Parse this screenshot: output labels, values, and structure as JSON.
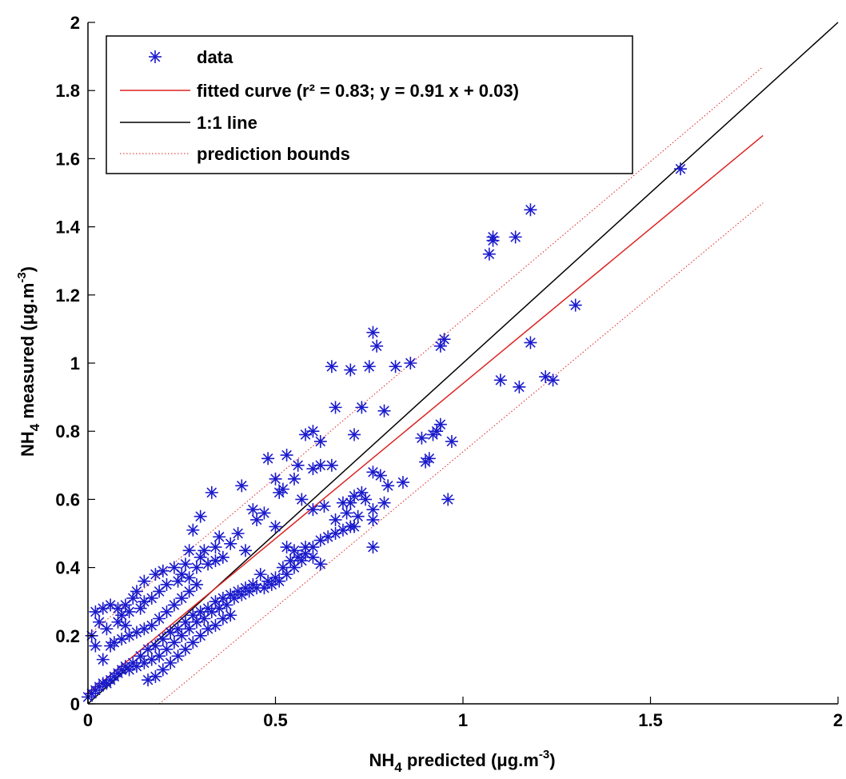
{
  "chart_data": {
    "type": "scatter",
    "xlabel": "NH",
    "xlabel_sub": "4",
    "xlabel_rest": " predicted (μg.m",
    "xlabel_sup": "-3",
    "xlabel_end": ")",
    "ylabel": "NH",
    "ylabel_sub": "4",
    "ylabel_rest": " measured (μg.m",
    "ylabel_sup": "-3",
    "ylabel_end": ")",
    "xlim": [
      0,
      2
    ],
    "ylim": [
      0,
      2
    ],
    "xticks": [
      0,
      0.5,
      1,
      1.5,
      2
    ],
    "xtick_labels": [
      "0",
      "0.5",
      "1",
      "1.5",
      "2"
    ],
    "yticks": [
      0,
      0.2,
      0.4,
      0.6,
      0.8,
      1,
      1.2,
      1.4,
      1.6,
      1.8,
      2
    ],
    "ytick_labels": [
      "0",
      "0.2",
      "0.4",
      "0.6",
      "0.8",
      "1",
      "1.2",
      "1.4",
      "1.6",
      "1.8",
      "2"
    ],
    "grid": false,
    "legend_position": "top-left",
    "legend": [
      {
        "label": "data",
        "marker": "star",
        "color": "#1a1acc"
      },
      {
        "label": "fitted curve (r² = 0.83; y = 0.91 x + 0.03)",
        "marker": "line",
        "color": "#dd2222"
      },
      {
        "label": "1:1 line",
        "marker": "line",
        "color": "#000000"
      },
      {
        "label": "prediction bounds",
        "marker": "dotted",
        "color": "#dd2222"
      }
    ],
    "fit": {
      "slope": 0.91,
      "intercept": 0.03,
      "x_range": [
        0,
        1.8
      ],
      "color": "#dd2222"
    },
    "identity_line": {
      "x_range": [
        0,
        2
      ],
      "color": "#000000"
    },
    "prediction_bounds": {
      "upper": [
        [
          0,
          0.2
        ],
        [
          1.8,
          1.87
        ]
      ],
      "lower": [
        [
          0.19,
          0
        ],
        [
          1.8,
          1.47
        ]
      ],
      "color": "#dd2222"
    },
    "series": [
      {
        "marker_color": "#1a1acc",
        "points": [
          [
            1.58,
            1.57
          ],
          [
            1.18,
            1.45
          ],
          [
            1.08,
            1.37
          ],
          [
            1.08,
            1.36
          ],
          [
            1.14,
            1.37
          ],
          [
            1.07,
            1.32
          ],
          [
            1.3,
            1.17
          ],
          [
            1.18,
            1.06
          ],
          [
            1.1,
            0.95
          ],
          [
            1.15,
            0.93
          ],
          [
            1.22,
            0.96
          ],
          [
            1.24,
            0.95
          ],
          [
            0.76,
            1.09
          ],
          [
            0.77,
            1.05
          ],
          [
            0.75,
            0.99
          ],
          [
            0.7,
            0.98
          ],
          [
            0.65,
            0.99
          ],
          [
            0.82,
            0.99
          ],
          [
            0.86,
            1.0
          ],
          [
            0.94,
            1.05
          ],
          [
            0.95,
            1.07
          ],
          [
            0.73,
            0.87
          ],
          [
            0.66,
            0.87
          ],
          [
            0.79,
            0.86
          ],
          [
            0.94,
            0.82
          ],
          [
            0.93,
            0.8
          ],
          [
            0.89,
            0.78
          ],
          [
            0.92,
            0.79
          ],
          [
            0.97,
            0.77
          ],
          [
            0.91,
            0.72
          ],
          [
            0.9,
            0.71
          ],
          [
            0.71,
            0.79
          ],
          [
            0.6,
            0.8
          ],
          [
            0.58,
            0.79
          ],
          [
            0.62,
            0.77
          ],
          [
            0.48,
            0.72
          ],
          [
            0.53,
            0.73
          ],
          [
            0.56,
            0.7
          ],
          [
            0.6,
            0.69
          ],
          [
            0.62,
            0.7
          ],
          [
            0.65,
            0.7
          ],
          [
            0.55,
            0.66
          ],
          [
            0.5,
            0.66
          ],
          [
            0.41,
            0.64
          ],
          [
            0.33,
            0.62
          ],
          [
            0.52,
            0.63
          ],
          [
            0.51,
            0.62
          ],
          [
            0.57,
            0.6
          ],
          [
            0.96,
            0.6
          ],
          [
            0.76,
            0.68
          ],
          [
            0.78,
            0.67
          ],
          [
            0.74,
            0.6
          ],
          [
            0.73,
            0.62
          ],
          [
            0.71,
            0.61
          ],
          [
            0.7,
            0.59
          ],
          [
            0.68,
            0.59
          ],
          [
            0.63,
            0.58
          ],
          [
            0.6,
            0.57
          ],
          [
            0.79,
            0.59
          ],
          [
            0.84,
            0.65
          ],
          [
            0.8,
            0.64
          ],
          [
            0.76,
            0.57
          ],
          [
            0.72,
            0.55
          ],
          [
            0.76,
            0.54
          ],
          [
            0.71,
            0.52
          ],
          [
            0.76,
            0.46
          ],
          [
            0.3,
            0.55
          ],
          [
            0.28,
            0.51
          ],
          [
            0.44,
            0.57
          ],
          [
            0.47,
            0.56
          ],
          [
            0.45,
            0.54
          ],
          [
            0.5,
            0.52
          ],
          [
            0.4,
            0.5
          ],
          [
            0.35,
            0.49
          ],
          [
            0.38,
            0.47
          ],
          [
            0.42,
            0.45
          ],
          [
            0.34,
            0.46
          ],
          [
            0.31,
            0.45
          ],
          [
            0.27,
            0.45
          ],
          [
            0.3,
            0.43
          ],
          [
            0.26,
            0.41
          ],
          [
            0.23,
            0.4
          ],
          [
            0.25,
            0.38
          ],
          [
            0.2,
            0.39
          ],
          [
            0.18,
            0.38
          ],
          [
            0.15,
            0.36
          ],
          [
            0.13,
            0.33
          ],
          [
            0.15,
            0.3
          ],
          [
            0.12,
            0.31
          ],
          [
            0.1,
            0.29
          ],
          [
            0.08,
            0.28
          ],
          [
            0.06,
            0.29
          ],
          [
            0.04,
            0.28
          ],
          [
            0.02,
            0.27
          ],
          [
            0.03,
            0.24
          ],
          [
            0.01,
            0.2
          ],
          [
            0.02,
            0.17
          ],
          [
            0.05,
            0.22
          ],
          [
            0.08,
            0.24
          ],
          [
            0.1,
            0.23
          ],
          [
            0.06,
            0.17
          ],
          [
            0.04,
            0.13
          ],
          [
            0.62,
            0.41
          ],
          [
            0.6,
            0.43
          ],
          [
            0.58,
            0.44
          ],
          [
            0.55,
            0.45
          ],
          [
            0.53,
            0.46
          ],
          [
            0.57,
            0.42
          ],
          [
            0.55,
            0.4
          ],
          [
            0.53,
            0.38
          ],
          [
            0.5,
            0.37
          ],
          [
            0.48,
            0.36
          ],
          [
            0.46,
            0.38
          ],
          [
            0.44,
            0.35
          ],
          [
            0.42,
            0.34
          ],
          [
            0.4,
            0.33
          ],
          [
            0.38,
            0.32
          ],
          [
            0.36,
            0.31
          ],
          [
            0.34,
            0.3
          ],
          [
            0.32,
            0.28
          ],
          [
            0.3,
            0.27
          ],
          [
            0.28,
            0.26
          ],
          [
            0.26,
            0.24
          ],
          [
            0.24,
            0.22
          ],
          [
            0.22,
            0.21
          ],
          [
            0.2,
            0.19
          ],
          [
            0.18,
            0.17
          ],
          [
            0.16,
            0.16
          ],
          [
            0.14,
            0.14
          ],
          [
            0.12,
            0.12
          ],
          [
            0.1,
            0.11
          ],
          [
            0.08,
            0.09
          ],
          [
            0.06,
            0.07
          ],
          [
            0.04,
            0.06
          ],
          [
            0.02,
            0.04
          ],
          [
            0.01,
            0.03
          ],
          [
            0.0,
            0.02
          ],
          [
            0.03,
            0.05
          ],
          [
            0.05,
            0.06
          ],
          [
            0.07,
            0.08
          ],
          [
            0.09,
            0.1
          ],
          [
            0.11,
            0.1
          ],
          [
            0.13,
            0.11
          ],
          [
            0.15,
            0.12
          ],
          [
            0.17,
            0.13
          ],
          [
            0.19,
            0.14
          ],
          [
            0.21,
            0.16
          ],
          [
            0.23,
            0.18
          ],
          [
            0.25,
            0.2
          ],
          [
            0.27,
            0.22
          ],
          [
            0.29,
            0.24
          ],
          [
            0.31,
            0.25
          ],
          [
            0.33,
            0.27
          ],
          [
            0.35,
            0.28
          ],
          [
            0.37,
            0.29
          ],
          [
            0.39,
            0.31
          ],
          [
            0.41,
            0.32
          ],
          [
            0.43,
            0.33
          ],
          [
            0.45,
            0.34
          ],
          [
            0.47,
            0.34
          ],
          [
            0.49,
            0.35
          ],
          [
            0.51,
            0.36
          ],
          [
            0.52,
            0.4
          ],
          [
            0.54,
            0.42
          ],
          [
            0.56,
            0.43
          ],
          [
            0.58,
            0.46
          ],
          [
            0.6,
            0.46
          ],
          [
            0.62,
            0.48
          ],
          [
            0.64,
            0.49
          ],
          [
            0.66,
            0.5
          ],
          [
            0.68,
            0.51
          ],
          [
            0.7,
            0.52
          ],
          [
            0.66,
            0.54
          ],
          [
            0.69,
            0.56
          ],
          [
            0.16,
            0.07
          ],
          [
            0.18,
            0.08
          ],
          [
            0.2,
            0.1
          ],
          [
            0.22,
            0.12
          ],
          [
            0.24,
            0.14
          ],
          [
            0.26,
            0.16
          ],
          [
            0.28,
            0.18
          ],
          [
            0.3,
            0.2
          ],
          [
            0.32,
            0.22
          ],
          [
            0.34,
            0.23
          ],
          [
            0.36,
            0.25
          ],
          [
            0.38,
            0.26
          ],
          [
            0.09,
            0.26
          ],
          [
            0.11,
            0.27
          ],
          [
            0.14,
            0.28
          ],
          [
            0.17,
            0.31
          ],
          [
            0.19,
            0.33
          ],
          [
            0.21,
            0.35
          ],
          [
            0.24,
            0.36
          ],
          [
            0.27,
            0.37
          ],
          [
            0.29,
            0.4
          ],
          [
            0.32,
            0.41
          ],
          [
            0.34,
            0.42
          ],
          [
            0.36,
            0.43
          ],
          [
            0.07,
            0.18
          ],
          [
            0.09,
            0.19
          ],
          [
            0.11,
            0.2
          ],
          [
            0.13,
            0.21
          ],
          [
            0.15,
            0.22
          ],
          [
            0.17,
            0.23
          ],
          [
            0.19,
            0.25
          ],
          [
            0.21,
            0.27
          ],
          [
            0.23,
            0.29
          ],
          [
            0.25,
            0.31
          ],
          [
            0.27,
            0.33
          ],
          [
            0.29,
            0.35
          ]
        ]
      }
    ]
  }
}
